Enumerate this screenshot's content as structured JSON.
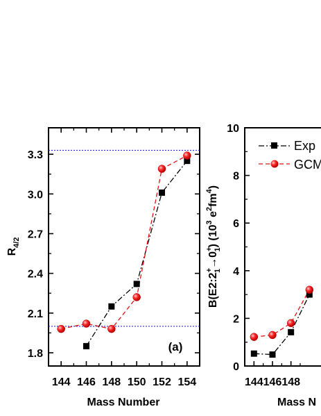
{
  "chart_data": [
    {
      "type": "line",
      "panel_label": "(a)",
      "ylabel": "R",
      "ylabel_sub": "4/2",
      "xlabel": "Mass Number",
      "xlim": [
        143,
        155
      ],
      "ylim": [
        1.7,
        3.5
      ],
      "xticks": [
        144,
        146,
        148,
        150,
        152,
        154
      ],
      "yticks": [
        1.8,
        2.1,
        2.4,
        2.7,
        3.0,
        3.3
      ],
      "ytick_labels": [
        "1.8",
        "2.1",
        "2.4",
        "2.7",
        "3.0",
        "3.3"
      ],
      "reference_lines": [
        2.0,
        3.33
      ],
      "reference_line_color": "#2a2ae0",
      "series": [
        {
          "key": "exp",
          "color": "#000000",
          "marker": "square",
          "dash": "8,3,2,3",
          "x": [
            146,
            148,
            150,
            152,
            154
          ],
          "y": [
            1.85,
            2.15,
            2.32,
            3.01,
            3.25
          ]
        },
        {
          "key": "gcm",
          "color": "#e01010",
          "marker": "circle",
          "dash": "6,4",
          "x": [
            144,
            146,
            148,
            150,
            152,
            154
          ],
          "y": [
            1.98,
            2.02,
            1.98,
            2.22,
            3.19,
            3.29
          ]
        }
      ]
    },
    {
      "type": "line",
      "ylabel_parts": {
        "a": "B(E2:2",
        "a_sup": "+",
        "a_sub": "1",
        "arrow": "→0",
        "b_sup": "+",
        "b_sub": "1",
        "c": ")  (10",
        "c_sup": "3",
        "d": " e",
        "d_sup": "2",
        "e": "fm",
        "e_sup": "4",
        "f": ")"
      },
      "xlabel": "Mass N",
      "xlim": [
        143,
        155
      ],
      "ylim": [
        0,
        10
      ],
      "xticks": [
        144,
        146,
        148
      ],
      "yticks": [
        0,
        2,
        4,
        6,
        8,
        10
      ],
      "ytick_labels": [
        "0",
        "2",
        "4",
        "6",
        "8",
        "10"
      ],
      "legend": [
        {
          "label": "Exp",
          "series": "exp"
        },
        {
          "label": "GCM",
          "series": "gcm"
        }
      ],
      "series": [
        {
          "key": "exp",
          "color": "#000000",
          "marker": "square",
          "dash": "8,3,2,3",
          "x": [
            144,
            146,
            148,
            150
          ],
          "y": [
            0.52,
            0.48,
            1.42,
            3.0
          ]
        },
        {
          "key": "gcm",
          "color": "#e01010",
          "marker": "circle",
          "dash": "6,4",
          "x": [
            144,
            146,
            148,
            150
          ],
          "y": [
            1.22,
            1.3,
            1.8,
            3.2
          ]
        }
      ]
    }
  ]
}
